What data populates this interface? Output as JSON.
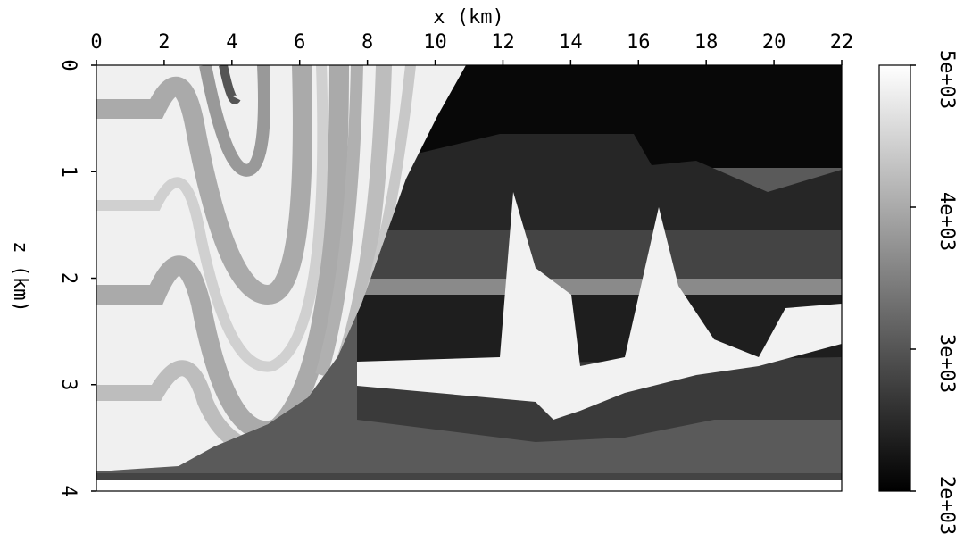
{
  "chart_data": {
    "type": "image",
    "x_label": "x (km)",
    "y_label": "z (km)",
    "xlim": [
      0,
      22
    ],
    "xticks": [
      0,
      2,
      4,
      6,
      8,
      10,
      12,
      14,
      16,
      18,
      20,
      22
    ],
    "ylim": [
      0,
      4
    ],
    "y_inverted": true,
    "yticks": [
      0,
      1,
      2,
      3,
      4
    ],
    "colorbar": {
      "lim": [
        2000,
        5000
      ],
      "colors": [
        "#000000",
        "#ffffff"
      ],
      "ticks": [
        {
          "value": 2000,
          "label": "2e+03"
        },
        {
          "value": 3000,
          "label": "3e+03"
        },
        {
          "value": 4000,
          "label": "4e+03"
        },
        {
          "value": 5000,
          "label": "5e+03"
        }
      ]
    }
  }
}
